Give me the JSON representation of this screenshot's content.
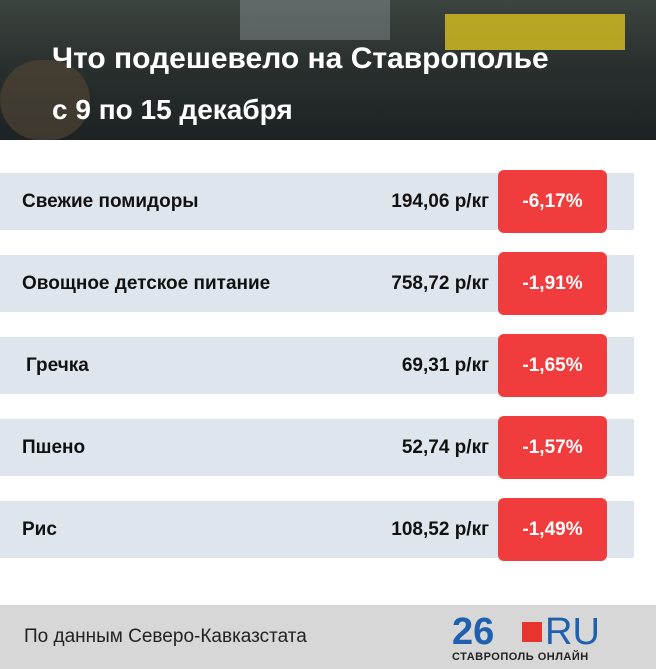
{
  "header": {
    "title": "Что подешевело на Ставрополье",
    "subtitle": "с 9 по 15 декабря"
  },
  "table": {
    "rows": [
      {
        "name": "Свежие помидоры",
        "price": "194,06 р/кг",
        "change": "-6,17%"
      },
      {
        "name": "Овощное детское питание",
        "price": "758,72 р/кг",
        "change": "-1,91%"
      },
      {
        "name": "Гречка",
        "price": "69,31 р/кг",
        "change": "-1,65%"
      },
      {
        "name": "Пшено",
        "price": "52,74 р/кг",
        "change": "-1,57%"
      },
      {
        "name": "Рис",
        "price": "108,52 р/кг",
        "change": "-1,49%"
      }
    ]
  },
  "footer": {
    "source": "По данным Северо-Кавказстата",
    "logo_number": "26",
    "logo_domain": "RU",
    "logo_city": "СТАВРОПОЛЬ ОНЛАЙН"
  }
}
